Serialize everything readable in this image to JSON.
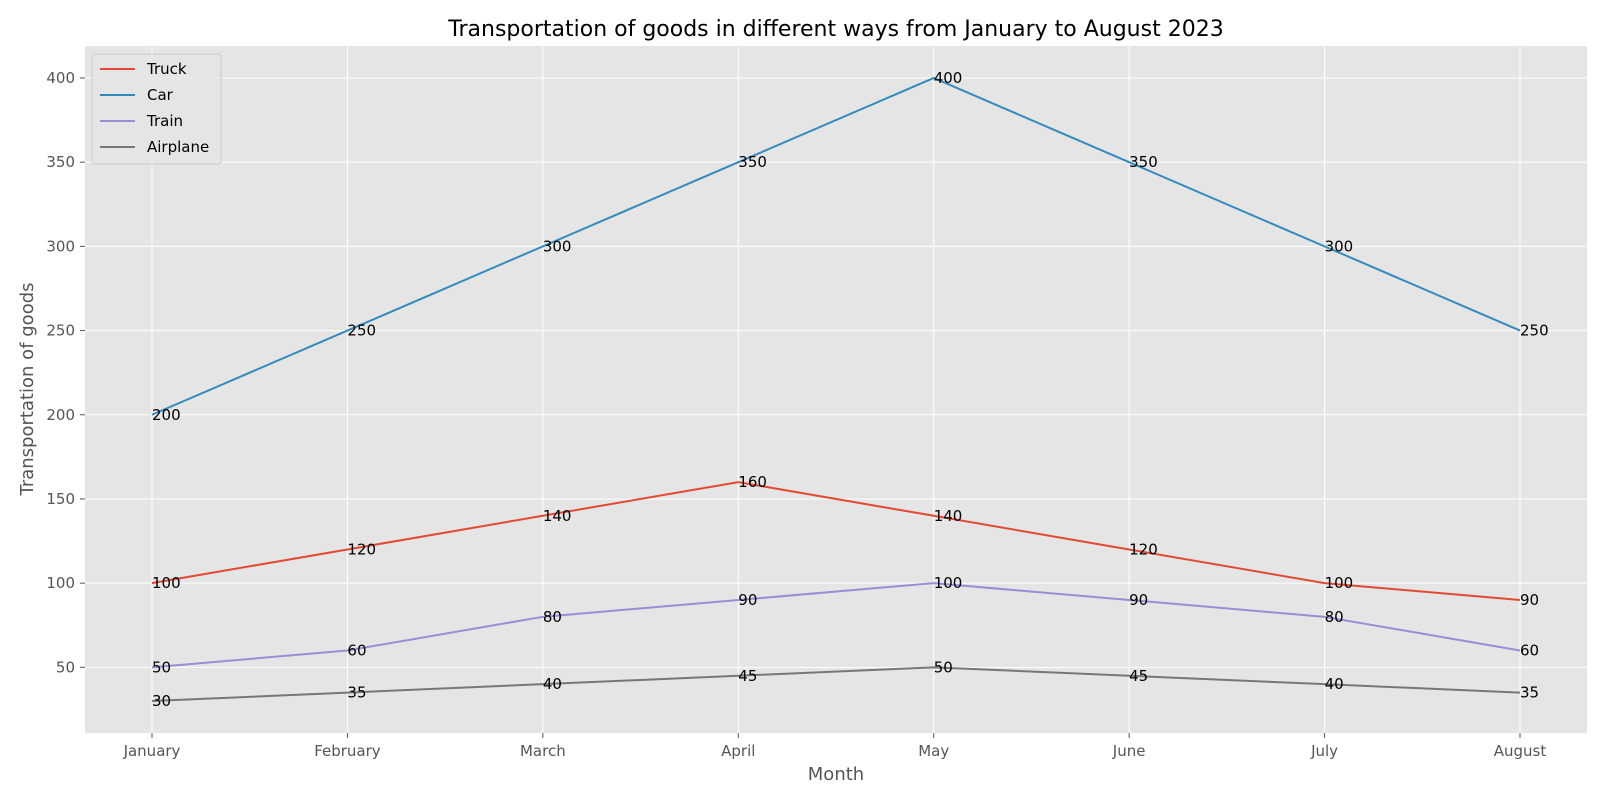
{
  "chart_data": {
    "type": "line",
    "title": "Transportation of goods in different ways from January to August 2023",
    "xlabel": "Month",
    "ylabel": "Transportation of goods",
    "categories": [
      "January",
      "February",
      "March",
      "April",
      "May",
      "June",
      "July",
      "August"
    ],
    "ylim": [
      11,
      419
    ],
    "yticks": [
      50,
      100,
      150,
      200,
      250,
      300,
      350,
      400
    ],
    "grid": true,
    "legend_position": "top-left",
    "background_color": "#e5e5e5",
    "series": [
      {
        "name": "Truck",
        "color": "#e24a33",
        "values": [
          100,
          120,
          140,
          160,
          140,
          120,
          100,
          90
        ]
      },
      {
        "name": "Car",
        "color": "#348abd",
        "values": [
          200,
          250,
          300,
          350,
          400,
          350,
          300,
          250
        ]
      },
      {
        "name": "Train",
        "color": "#988ed5",
        "values": [
          50,
          60,
          80,
          90,
          100,
          90,
          80,
          60
        ]
      },
      {
        "name": "Airplane",
        "color": "#777777",
        "values": [
          30,
          35,
          40,
          45,
          50,
          45,
          40,
          35
        ]
      }
    ]
  }
}
